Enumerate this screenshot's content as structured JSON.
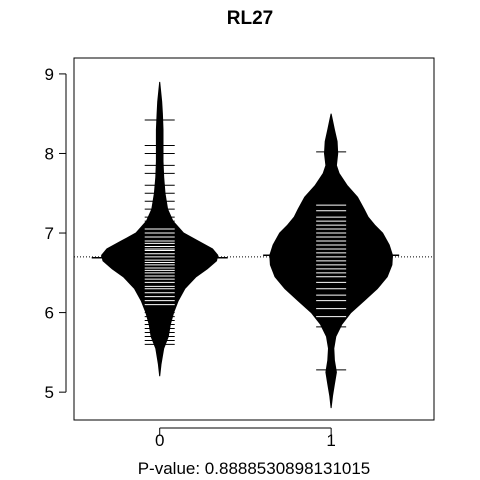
{
  "chart_data": {
    "type": "beanplot",
    "title": "RL27",
    "xlabel": "P-value: 0.8888530898131015",
    "ylabel": "",
    "categories": [
      "0",
      "1"
    ],
    "yticks": [
      5,
      6,
      7,
      8,
      9
    ],
    "ylim": [
      4.65,
      9.2
    ],
    "xlim": [
      0.5,
      2.6
    ],
    "overall_mean": 6.7,
    "group_means": [
      6.69,
      6.72
    ],
    "series": [
      {
        "category": "0",
        "range": [
          5.2,
          8.9
        ],
        "density": [
          [
            5.2,
            0.0
          ],
          [
            5.35,
            0.02
          ],
          [
            5.55,
            0.06
          ],
          [
            5.7,
            0.13
          ],
          [
            5.85,
            0.16
          ],
          [
            6.0,
            0.21
          ],
          [
            6.15,
            0.28
          ],
          [
            6.3,
            0.38
          ],
          [
            6.45,
            0.55
          ],
          [
            6.55,
            0.72
          ],
          [
            6.65,
            0.86
          ],
          [
            6.72,
            0.88
          ],
          [
            6.8,
            0.8
          ],
          [
            6.9,
            0.58
          ],
          [
            7.0,
            0.36
          ],
          [
            7.15,
            0.2
          ],
          [
            7.3,
            0.12
          ],
          [
            7.5,
            0.08
          ],
          [
            7.7,
            0.06
          ],
          [
            7.9,
            0.05
          ],
          [
            8.1,
            0.05
          ],
          [
            8.3,
            0.05
          ],
          [
            8.5,
            0.04
          ],
          [
            8.65,
            0.03
          ],
          [
            8.9,
            0.0
          ]
        ],
        "points": [
          5.6,
          5.65,
          5.7,
          5.75,
          5.8,
          5.85,
          5.9,
          5.95,
          6.0,
          6.05,
          6.1,
          6.15,
          6.2,
          6.25,
          6.3,
          6.33,
          6.38,
          6.42,
          6.46,
          6.5,
          6.53,
          6.56,
          6.6,
          6.63,
          6.66,
          6.7,
          6.74,
          6.78,
          6.8,
          6.83,
          6.87,
          6.9,
          6.95,
          7.0,
          7.05,
          7.1,
          7.15,
          7.2,
          7.3,
          7.4,
          7.5,
          7.6,
          7.75,
          7.85,
          8.0,
          8.1,
          8.42
        ]
      },
      {
        "category": "1",
        "range": [
          4.8,
          8.5
        ],
        "density": [
          [
            4.8,
            0.0
          ],
          [
            4.95,
            0.02
          ],
          [
            5.1,
            0.05
          ],
          [
            5.25,
            0.08
          ],
          [
            5.4,
            0.05
          ],
          [
            5.55,
            0.04
          ],
          [
            5.7,
            0.07
          ],
          [
            5.85,
            0.16
          ],
          [
            6.0,
            0.3
          ],
          [
            6.15,
            0.5
          ],
          [
            6.3,
            0.7
          ],
          [
            6.45,
            0.85
          ],
          [
            6.6,
            0.92
          ],
          [
            6.72,
            0.93
          ],
          [
            6.85,
            0.88
          ],
          [
            7.0,
            0.78
          ],
          [
            7.1,
            0.66
          ],
          [
            7.2,
            0.56
          ],
          [
            7.3,
            0.5
          ],
          [
            7.45,
            0.4
          ],
          [
            7.6,
            0.24
          ],
          [
            7.75,
            0.12
          ],
          [
            7.85,
            0.08
          ],
          [
            8.0,
            0.1
          ],
          [
            8.15,
            0.09
          ],
          [
            8.3,
            0.05
          ],
          [
            8.5,
            0.0
          ]
        ],
        "points": [
          5.28,
          5.82,
          5.95,
          6.05,
          6.15,
          6.22,
          6.3,
          6.38,
          6.45,
          6.5,
          6.55,
          6.6,
          6.65,
          6.7,
          6.75,
          6.8,
          6.85,
          6.9,
          6.95,
          7.0,
          7.05,
          7.1,
          7.15,
          7.2,
          7.28,
          7.35,
          8.02
        ]
      }
    ],
    "grid": false,
    "legend": "none",
    "colors": {
      "bean": "#000000",
      "lines": "#ffffff",
      "axis": "#000000"
    }
  }
}
